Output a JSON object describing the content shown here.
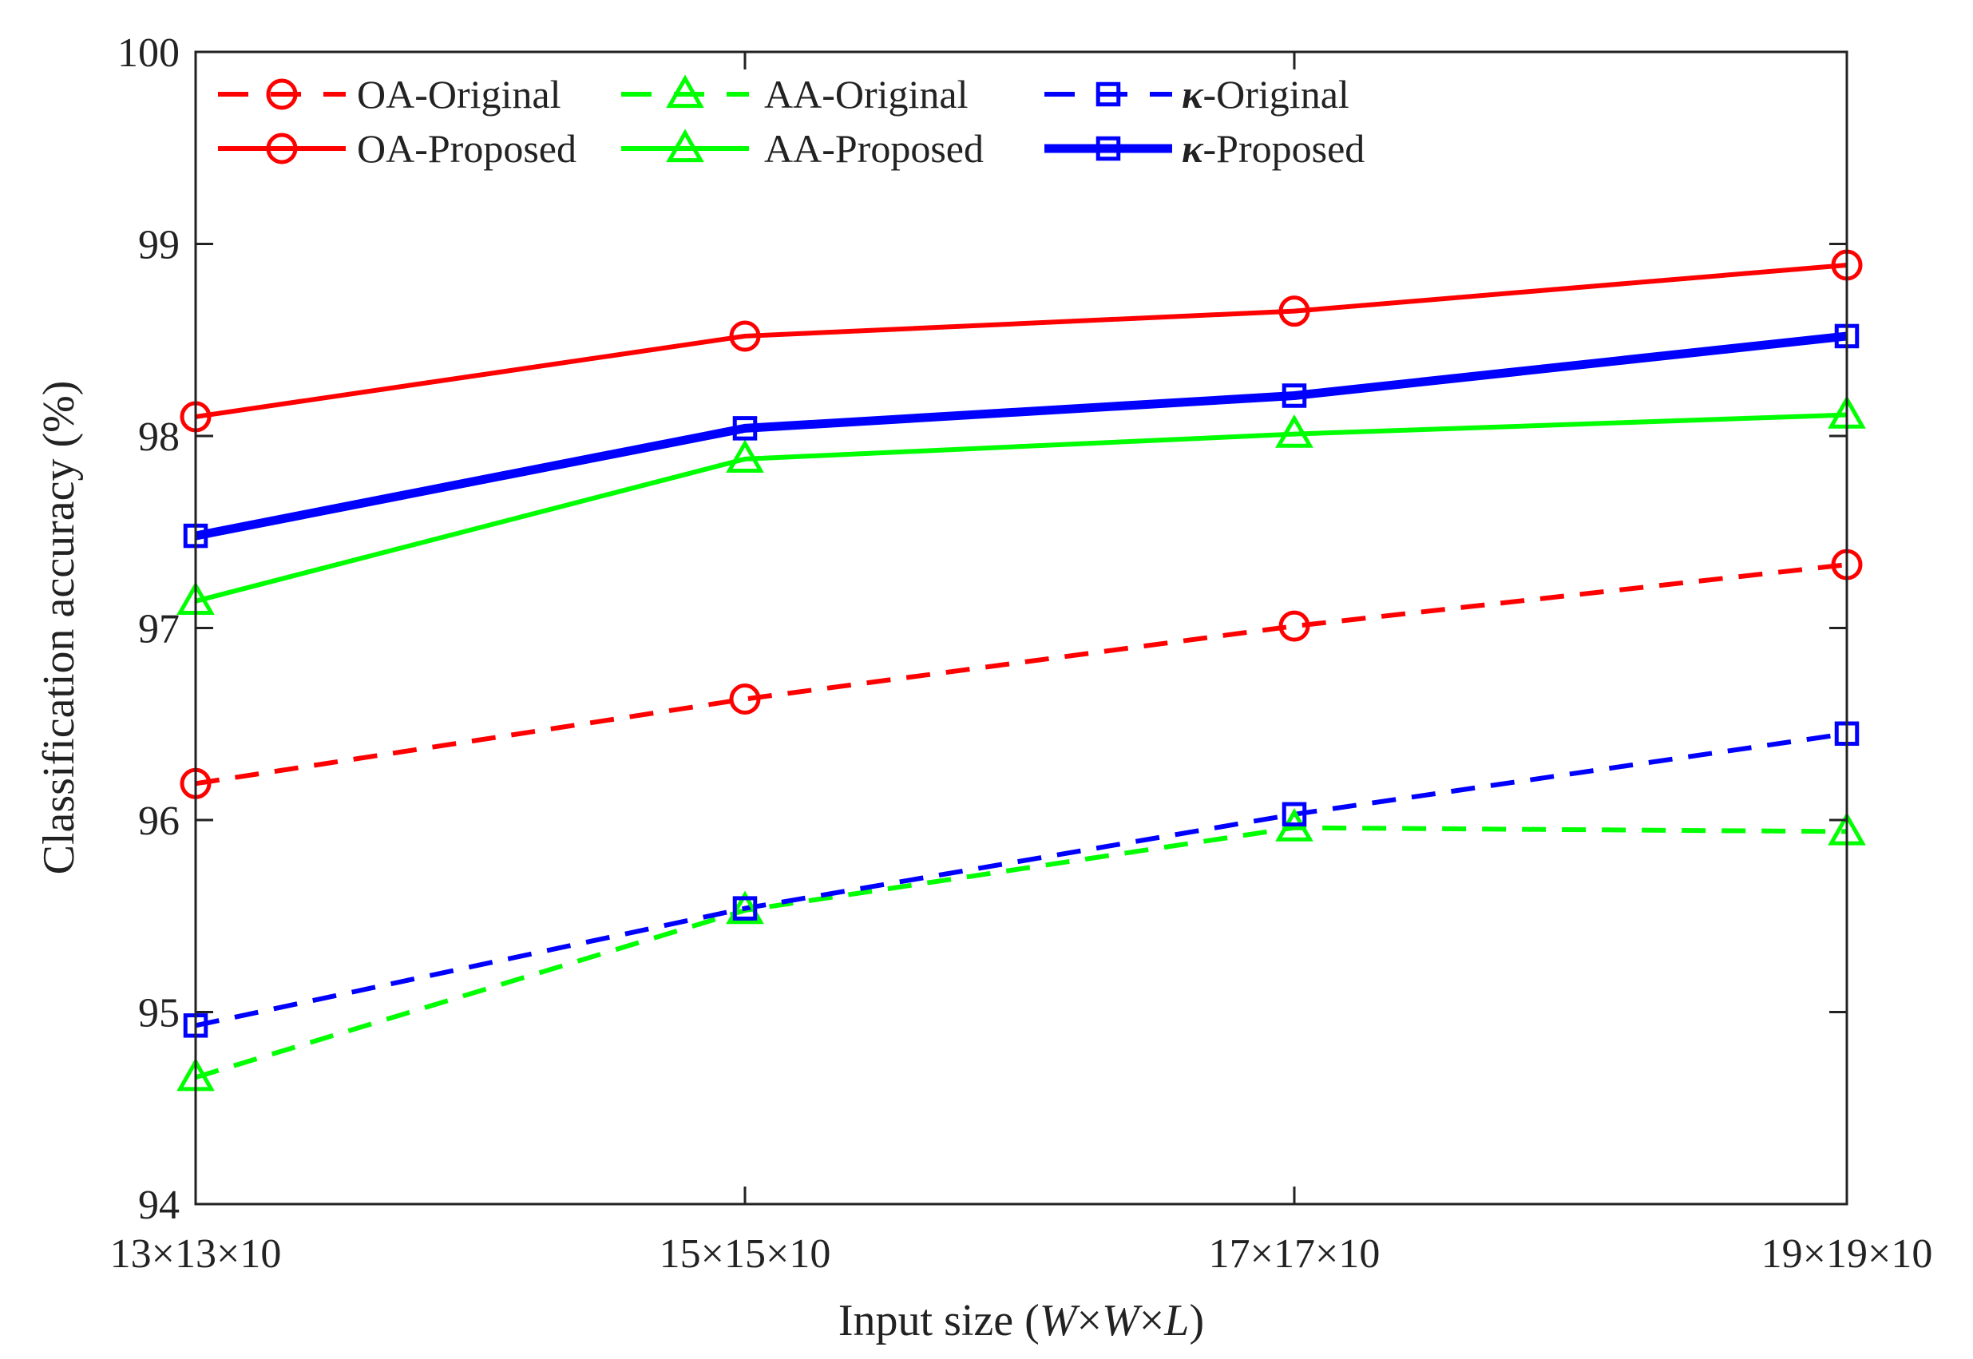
{
  "chart_data": {
    "type": "line",
    "title": "",
    "xlabel": "Input size (W×W×L)",
    "xlabel_parts": {
      "open": "Input size (",
      "w1": "W",
      "times1": "×",
      "w2": "W",
      "times2": "×",
      "l": "L",
      "close": ")"
    },
    "ylabel": "Classification accuracy (%)",
    "categories": [
      "13×13×10",
      "15×15×10",
      "17×17×10",
      "19×19×10"
    ],
    "ylim": [
      94,
      100
    ],
    "yticks": [
      "94",
      "95",
      "96",
      "97",
      "98",
      "99",
      "100"
    ],
    "grid": false,
    "legend_position": "top-left",
    "series": [
      {
        "name": "OA-Original",
        "label_prefix": "",
        "label_text": "OA-Original",
        "color": "#ff0000",
        "line": "dashed",
        "marker": "circle",
        "values": [
          96.19,
          96.63,
          97.01,
          97.33
        ]
      },
      {
        "name": "AA-Original",
        "label_prefix": "",
        "label_text": "AA-Original",
        "color": "#00ff00",
        "line": "dashed",
        "marker": "triangle",
        "values": [
          94.66,
          95.53,
          95.96,
          95.94
        ]
      },
      {
        "name": "κ-Original",
        "label_prefix": "κ",
        "label_text": "-Original",
        "color": "#0000ff",
        "line": "dashed",
        "marker": "square",
        "values": [
          94.93,
          95.54,
          96.03,
          96.45
        ]
      },
      {
        "name": "OA-Proposed",
        "label_prefix": "",
        "label_text": "OA-Proposed",
        "color": "#ff0000",
        "line": "solid",
        "marker": "circle",
        "values": [
          98.1,
          98.52,
          98.65,
          98.89
        ]
      },
      {
        "name": "AA-Proposed",
        "label_prefix": "",
        "label_text": "AA-Proposed",
        "color": "#00ff00",
        "line": "solid",
        "marker": "triangle",
        "values": [
          97.14,
          97.88,
          98.01,
          98.11
        ]
      },
      {
        "name": "κ-Proposed",
        "label_prefix": "κ",
        "label_text": "-Proposed",
        "color": "#0000ff",
        "line": "solid-thick",
        "marker": "square",
        "values": [
          97.48,
          98.04,
          98.21,
          98.52
        ]
      }
    ]
  }
}
